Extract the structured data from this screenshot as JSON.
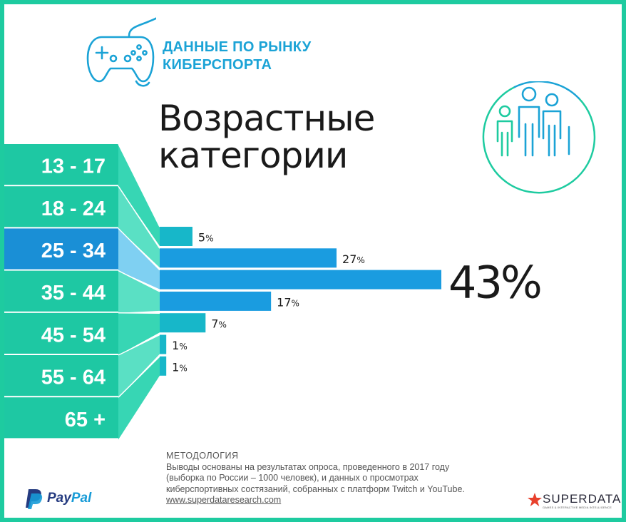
{
  "header": {
    "title_line1": "ДАННЫЕ ПО РЫНКУ",
    "title_line2": "КИБЕРСПОРТА"
  },
  "main_title": {
    "line1": "Возрастные",
    "line2": "категории"
  },
  "icons": {
    "gamepad": "gamepad-icon",
    "family": "family-icon",
    "paypal": "paypal-logo-icon",
    "superdata": "superdata-star-icon"
  },
  "colors": {
    "frame": "#1ecba0",
    "band_teal": "#1ec8a3",
    "band_highlight": "#1a8fd6",
    "bar": "#1a9ce0",
    "bar_small": "#17b7c9",
    "accent_blue": "#1ba3d6"
  },
  "chart_data": {
    "type": "bar",
    "orientation": "horizontal",
    "categories": [
      "13 - 17",
      "18 - 24",
      "25 - 34",
      "35 - 44",
      "45 - 54",
      "55 - 64",
      "65 +"
    ],
    "values": [
      5,
      27,
      43,
      17,
      7,
      1,
      1
    ],
    "value_labels": [
      "5",
      "27",
      "43",
      "17",
      "7",
      "1",
      "1"
    ],
    "unit": "%",
    "highlight_category": "25 - 34",
    "highlight_value": 43,
    "xlim": [
      0,
      43
    ],
    "grid": false,
    "legend": "none"
  },
  "methodology": {
    "title": "МЕТОДОЛОГИЯ",
    "line1": "Выводы основаны на результатах опроса, проведенного в 2017 году",
    "line2": "(выборка по России – 1000 человек), и данных о просмотрах",
    "line3": "киберспортивных состязаний, собранных с платформ Twitch и YouTube.",
    "link": "www.superdataresearch.com"
  },
  "footer": {
    "paypal_pay": "Pay",
    "paypal_pal": "Pal",
    "superdata_name": "SUPERDATA",
    "superdata_tagline": "GAMES & INTERACTIVE MEDIA INTELLIGENCE"
  }
}
